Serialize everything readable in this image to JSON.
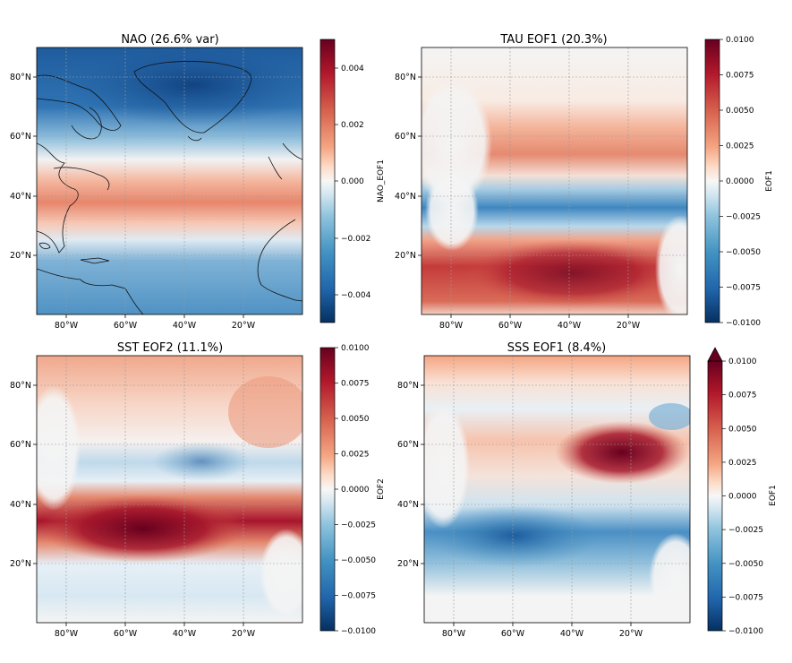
{
  "colors": {
    "colormap": "RdBu_r",
    "dark_red": "#67001f",
    "red": "#d6604d",
    "white": "#f7f7f7",
    "blue": "#4393c3",
    "dark_blue": "#053061",
    "land_mask": "#f4f4f4",
    "grid": "#9a9a9a"
  },
  "chart_data": [
    {
      "type": "heatmap",
      "title": "NAO (26.6% var)",
      "colorbar_label": "NAO_EOF1",
      "colorbar_ticks": [
        "0.004",
        "0.002",
        "0.000",
        "−0.002",
        "−0.004"
      ],
      "colorbar_range": [
        -0.005,
        0.005
      ],
      "colorbar_extend": "none",
      "x_ticks": [
        "80°W",
        "60°W",
        "40°W",
        "20°W"
      ],
      "y_ticks": [
        "80°N",
        "60°N",
        "40°N",
        "20°N"
      ],
      "lon_range": [
        -90,
        0
      ],
      "lat_range": [
        0,
        90
      ],
      "coastlines": true,
      "pattern": "dipole: negative north of 55°N, positive band 30–45°N, negative south of 25°N"
    },
    {
      "type": "heatmap",
      "title": "TAU EOF1 (20.3%)",
      "colorbar_label": "EOF1",
      "colorbar_ticks": [
        "0.0100",
        "0.0075",
        "0.0050",
        "0.0025",
        "0.0000",
        "−0.0025",
        "−0.0050",
        "−0.0075",
        "−0.0100"
      ],
      "colorbar_range": [
        -0.01,
        0.01
      ],
      "colorbar_extend": "none",
      "x_ticks": [
        "80°W",
        "60°W",
        "40°W",
        "20°W"
      ],
      "y_ticks": [
        "80°N",
        "60°N",
        "40°N",
        "20°N"
      ],
      "lon_range": [
        -90,
        0
      ],
      "lat_range": [
        0,
        90
      ],
      "coastlines": false,
      "pattern": "positive 45–60°N, negative 30–40°N, strong positive 10–25°N"
    },
    {
      "type": "heatmap",
      "title": "SST EOF2 (11.1%)",
      "colorbar_label": "EOF2",
      "colorbar_ticks": [
        "0.0100",
        "0.0075",
        "0.0050",
        "0.0025",
        "0.0000",
        "−0.0025",
        "−0.0050",
        "−0.0075",
        "−0.0100"
      ],
      "colorbar_range": [
        -0.01,
        0.01
      ],
      "colorbar_extend": "none",
      "x_ticks": [
        "80°W",
        "60°W",
        "40°W",
        "20°W"
      ],
      "y_ticks": [
        "80°N",
        "60°N",
        "40°N",
        "20°N"
      ],
      "lon_range": [
        -90,
        0
      ],
      "lat_range": [
        0,
        90
      ],
      "coastlines": false,
      "pattern": "strong positive 25–40°N subtropical band, weak negative 45–60°N, positive north"
    },
    {
      "type": "heatmap",
      "title": "SSS EOF1 (8.4%)",
      "colorbar_label": "EOF1",
      "colorbar_ticks": [
        "0.0100",
        "0.0075",
        "0.0050",
        "0.0025",
        "0.0000",
        "−0.0025",
        "−0.0050",
        "−0.0075",
        "−0.0100"
      ],
      "colorbar_range": [
        -0.01,
        0.01
      ],
      "colorbar_extend": "max",
      "x_ticks": [
        "80°W",
        "60°W",
        "40°W",
        "20°W"
      ],
      "y_ticks": [
        "80°N",
        "60°N",
        "40°N",
        "20°N"
      ],
      "lon_range": [
        -90,
        0
      ],
      "lat_range": [
        0,
        90
      ],
      "coastlines": false,
      "pattern": "strong positive subpolar gyre 50–65°N, negative 20–40°N west, positive in far north"
    }
  ]
}
